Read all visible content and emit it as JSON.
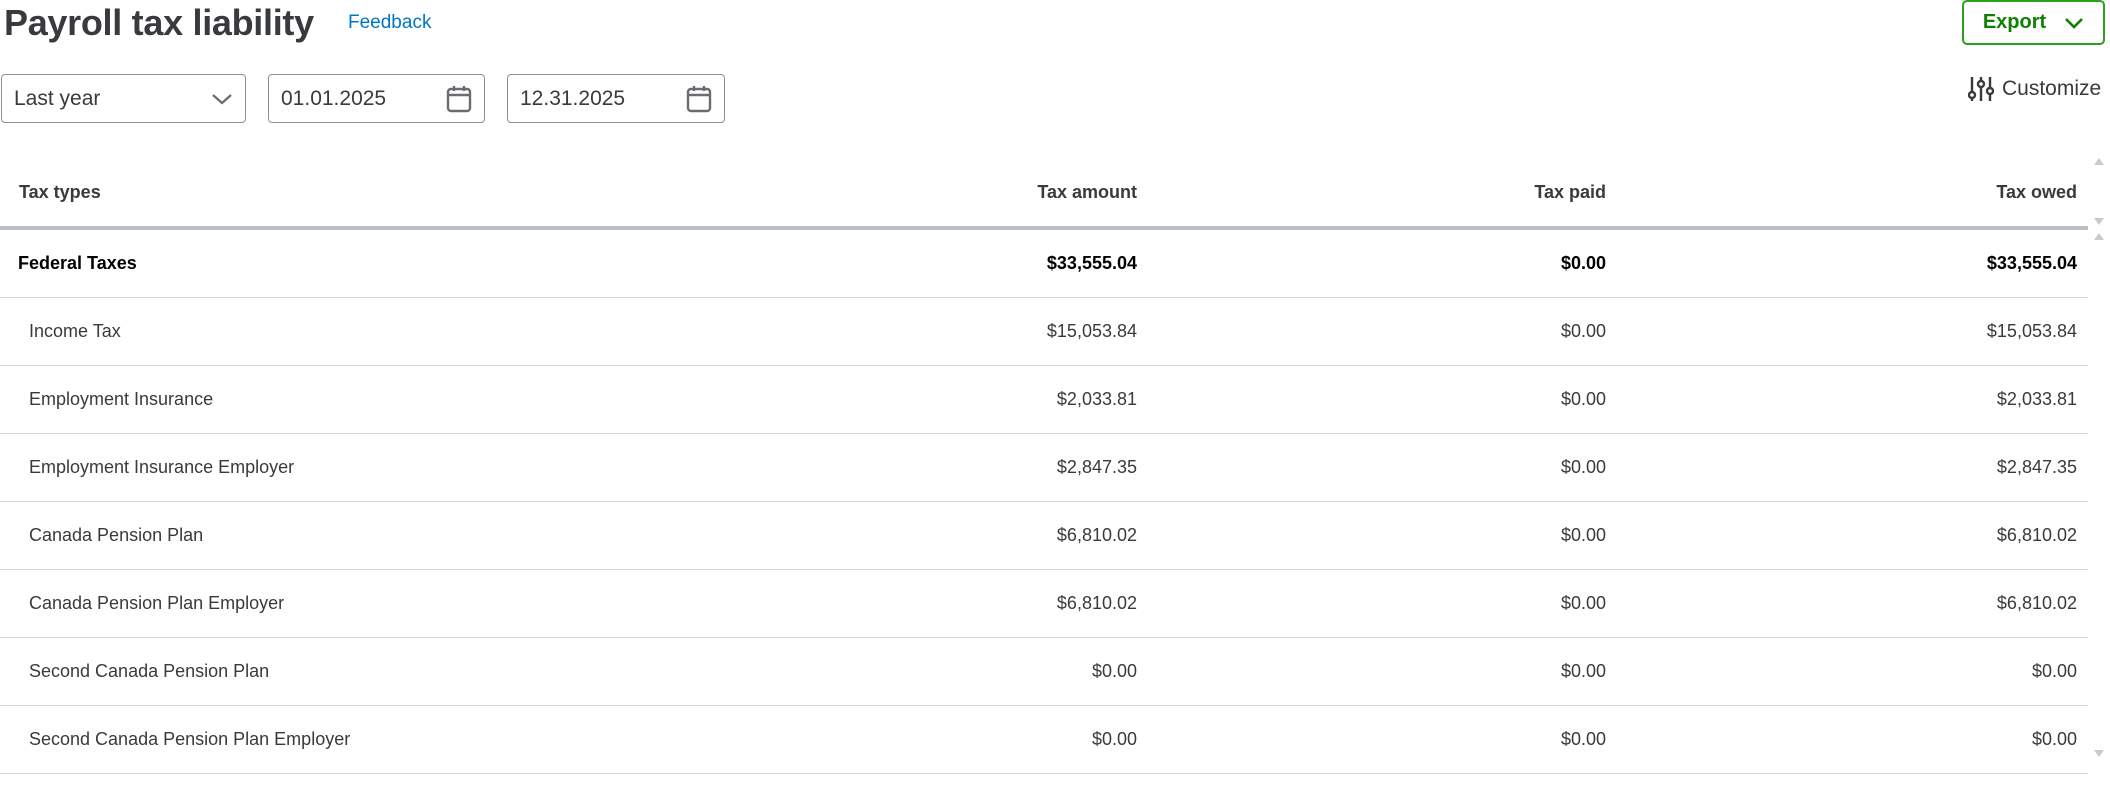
{
  "header": {
    "title": "Payroll tax liability",
    "feedback_label": "Feedback",
    "export_label": "Export",
    "customize_label": "Customize"
  },
  "filters": {
    "period": "Last year",
    "start_date": "01.01.2025",
    "end_date": "12.31.2025"
  },
  "table": {
    "columns": [
      "Tax types",
      "Tax amount",
      "Tax paid",
      "Tax owed"
    ],
    "rows": [
      {
        "name": "Federal Taxes",
        "amount": "$33,555.04",
        "paid": "$0.00",
        "owed": "$33,555.04",
        "group": true
      },
      {
        "name": "Income Tax",
        "amount": "$15,053.84",
        "paid": "$0.00",
        "owed": "$15,053.84"
      },
      {
        "name": "Employment Insurance",
        "amount": "$2,033.81",
        "paid": "$0.00",
        "owed": "$2,033.81"
      },
      {
        "name": "Employment Insurance Employer",
        "amount": "$2,847.35",
        "paid": "$0.00",
        "owed": "$2,847.35"
      },
      {
        "name": "Canada Pension Plan",
        "amount": "$6,810.02",
        "paid": "$0.00",
        "owed": "$6,810.02"
      },
      {
        "name": "Canada Pension Plan Employer",
        "amount": "$6,810.02",
        "paid": "$0.00",
        "owed": "$6,810.02"
      },
      {
        "name": "Second Canada Pension Plan",
        "amount": "$0.00",
        "paid": "$0.00",
        "owed": "$0.00"
      },
      {
        "name": "Second Canada Pension Plan Employer",
        "amount": "$0.00",
        "paid": "$0.00",
        "owed": "$0.00"
      }
    ]
  },
  "colors": {
    "accent_green": "#2ca01c",
    "link_blue": "#0077c5",
    "text": "#393a3d"
  }
}
